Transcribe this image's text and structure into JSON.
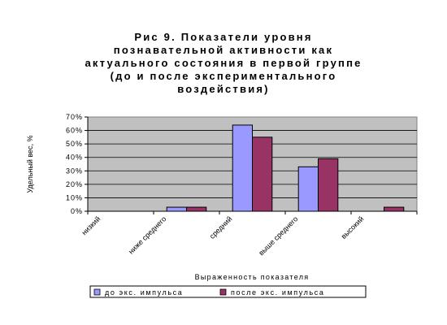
{
  "chart_data": {
    "type": "bar",
    "title_lines": [
      "Рис 9. Показатели уровня",
      "познавательной активности как",
      "актуального состояния в первой группе",
      "(до и после экспериментального",
      "воздействия)"
    ],
    "xlabel": "Выраженность показателя",
    "ylabel": "Удельный вес, %",
    "ylim": [
      0,
      70
    ],
    "yticks": [
      "0%",
      "10%",
      "20%",
      "30%",
      "40%",
      "50%",
      "60%",
      "70%"
    ],
    "categories": [
      "низкий",
      "ниже среднего",
      "средний",
      "выше среднего",
      "высокий"
    ],
    "series": [
      {
        "name": "до экс. импульса",
        "color": "#9999ff",
        "values": [
          0,
          3,
          64,
          33,
          0
        ]
      },
      {
        "name": "после экс. импульса",
        "color": "#993366",
        "values": [
          0,
          3,
          55,
          39,
          3
        ]
      }
    ],
    "plot_background": "#c0c0c0",
    "grid": true,
    "legend_position": "bottom"
  }
}
